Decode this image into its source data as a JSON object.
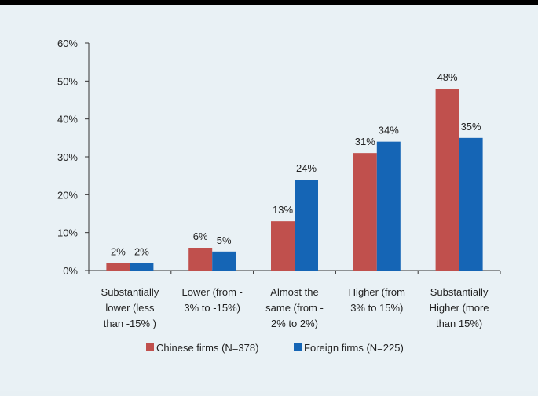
{
  "chart_data": {
    "type": "bar",
    "categories": [
      [
        "Substantially",
        "lower (less",
        "than -15% )"
      ],
      [
        "Lower (from -",
        "3% to -15%)"
      ],
      [
        "Almost the",
        "same (from -",
        "2% to 2%)"
      ],
      [
        "Higher (from",
        "3% to 15%)"
      ],
      [
        "Substantially",
        "Higher (more",
        "than 15%)"
      ]
    ],
    "series": [
      {
        "name": "Chinese firms (N=378)",
        "values": [
          2,
          6,
          13,
          31,
          48
        ],
        "labels": [
          "2%",
          "6%",
          "13%",
          "31%",
          "48%"
        ],
        "color": "#c0504d"
      },
      {
        "name": "Foreign firms (N=225)",
        "values": [
          2,
          5,
          24,
          34,
          35
        ],
        "labels": [
          "2%",
          "5%",
          "24%",
          "34%",
          "35%"
        ],
        "color": "#1565b5"
      }
    ],
    "ylim": [
      0,
      60
    ],
    "yticks": [
      "0%",
      "10%",
      "20%",
      "30%",
      "40%",
      "50%",
      "60%"
    ],
    "grid": false,
    "legend": "bottom"
  }
}
